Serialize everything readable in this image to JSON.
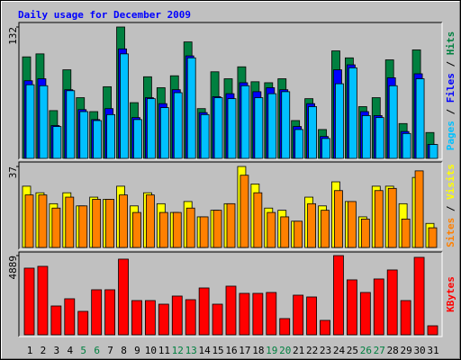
{
  "chart_data": [
    {
      "type": "bar",
      "title": "Daily usage for December 2009",
      "legend_separator": "/",
      "ylim": [
        0,
        132
      ],
      "yticks": [
        132
      ],
      "series": [
        {
          "name": "Hits",
          "color": "#008040",
          "values": [
            102,
            105,
            48,
            89,
            61,
            47,
            72,
            132,
            56,
            82,
            71,
            83,
            117,
            50,
            87,
            80,
            92,
            77,
            76,
            80,
            38,
            60,
            29,
            108,
            101,
            52,
            61,
            99,
            35,
            109,
            26
          ]
        },
        {
          "name": "Files",
          "color": "#0000FF",
          "values": [
            78,
            80,
            33,
            69,
            49,
            39,
            50,
            110,
            41,
            61,
            55,
            69,
            103,
            46,
            62,
            65,
            76,
            67,
            71,
            69,
            32,
            55,
            22,
            89,
            94,
            47,
            43,
            81,
            27,
            85,
            14
          ]
        },
        {
          "name": "Pages",
          "color": "#00C0FF",
          "values": [
            74,
            73,
            32,
            68,
            47,
            38,
            44,
            105,
            39,
            60,
            51,
            66,
            101,
            44,
            61,
            60,
            73,
            61,
            65,
            67,
            29,
            52,
            20,
            75,
            91,
            43,
            41,
            73,
            25,
            80,
            14
          ]
        }
      ]
    },
    {
      "type": "bar",
      "legend_separator": "/",
      "ylim": [
        0,
        37
      ],
      "yticks": [
        37
      ],
      "series": [
        {
          "name": "Visits",
          "color": "#FFFF00",
          "values": [
            28,
            25,
            20,
            25,
            19,
            23,
            22,
            28,
            19,
            25,
            20,
            16,
            21,
            14,
            17,
            20,
            37,
            29,
            18,
            17,
            12,
            23,
            19,
            30,
            21,
            14,
            28,
            28,
            20,
            32,
            11
          ]
        },
        {
          "name": "Sites",
          "color": "#FF8000",
          "values": [
            24,
            24,
            18,
            23,
            19,
            22,
            22,
            24,
            16,
            24,
            16,
            16,
            18,
            14,
            17,
            20,
            33,
            25,
            16,
            14,
            12,
            20,
            17,
            26,
            21,
            13,
            26,
            27,
            13,
            35,
            9
          ]
        }
      ]
    },
    {
      "type": "bar",
      "ylim": [
        0,
        4889
      ],
      "yticks": [
        4889
      ],
      "categories": [
        "1",
        "2",
        "3",
        "4",
        "5",
        "6",
        "7",
        "8",
        "9",
        "10",
        "11",
        "12",
        "13",
        "14",
        "15",
        "16",
        "17",
        "18",
        "19",
        "20",
        "21",
        "22",
        "23",
        "24",
        "25",
        "26",
        "27",
        "28",
        "29",
        "30",
        "31"
      ],
      "category_colors": [
        "#000000",
        "#000000",
        "#000000",
        "#000000",
        "#008040",
        "#008040",
        "#000000",
        "#000000",
        "#000000",
        "#000000",
        "#000000",
        "#008040",
        "#008040",
        "#000000",
        "#000000",
        "#000000",
        "#000000",
        "#000000",
        "#008040",
        "#008040",
        "#000000",
        "#000000",
        "#000000",
        "#000000",
        "#000000",
        "#008040",
        "#008040",
        "#000000",
        "#000000",
        "#000000",
        "#000000"
      ],
      "series": [
        {
          "name": "KBytes",
          "color": "#FF0000",
          "values": [
            4114,
            4226,
            1779,
            2224,
            1446,
            2780,
            2780,
            4670,
            2113,
            2113,
            1890,
            2391,
            2168,
            2891,
            1890,
            3002,
            2558,
            2558,
            2613,
            1001,
            2446,
            2335,
            890,
            4889,
            3392,
            2613,
            3447,
            4003,
            2113,
            4781,
            556
          ]
        }
      ]
    }
  ]
}
